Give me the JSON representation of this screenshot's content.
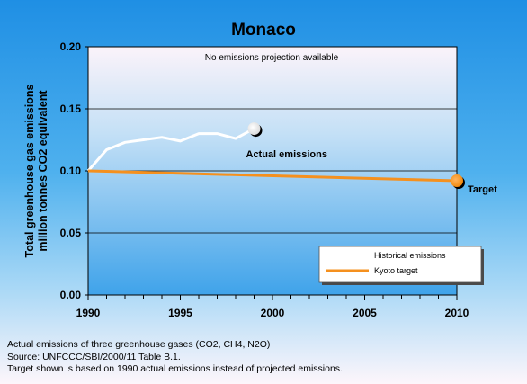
{
  "chart_data": {
    "type": "line",
    "title": "Monaco",
    "ylabel": [
      "Total greenhouse gas emissions",
      "million tonnes CO2 equivalent"
    ],
    "xlabel": "",
    "xlim": [
      1990,
      2010
    ],
    "ylim": [
      0.0,
      0.2
    ],
    "x_ticks": [
      "1990",
      "1995",
      "2000",
      "2005",
      "2010"
    ],
    "y_ticks": [
      "0.00",
      "0.05",
      "0.10",
      "0.15",
      "0.20"
    ],
    "grid": true,
    "annotation": "No emissions projection available",
    "legend_position": "bottom-right",
    "series": [
      {
        "name": "Historical emissions",
        "color": "#ffffff",
        "x": [
          1990,
          1991,
          1992,
          1993,
          1994,
          1995,
          1996,
          1997,
          1998,
          1999
        ],
        "y": [
          0.1,
          0.117,
          0.123,
          0.125,
          0.127,
          0.124,
          0.13,
          0.13,
          0.126,
          0.134
        ],
        "end_label": "Actual emissions"
      },
      {
        "name": "Kyoto target",
        "color": "#f5901e",
        "x": [
          1990,
          2010
        ],
        "y": [
          0.1,
          0.092
        ],
        "end_label": "Target"
      }
    ]
  },
  "notes": [
    "Actual emissions of three greenhouse gases (CO2, CH4, N2O)",
    "Source: UNFCCC/SBI/2000/11 Table B.1.",
    "Target shown is based on 1990 actual emissions instead of projected emissions."
  ]
}
